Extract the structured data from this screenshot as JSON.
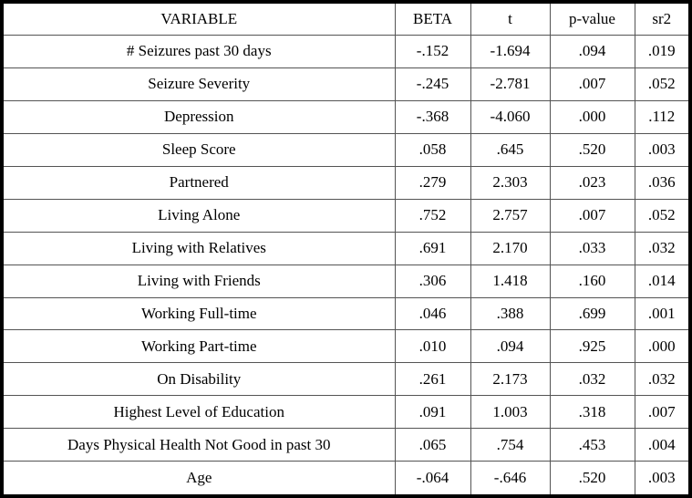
{
  "colors": {
    "background": "#ffffff",
    "text": "#000000",
    "outer_border": "#000000",
    "inner_border": "#545454"
  },
  "table": {
    "columns": [
      "VARIABLE",
      "BETA",
      "t",
      "p-value",
      "sr2"
    ],
    "rows": [
      {
        "variable": "# Seizures past 30 days",
        "beta": "-.152",
        "t": "-1.694",
        "p_value": ".094",
        "sr2": ".019"
      },
      {
        "variable": "Seizure Severity",
        "beta": "-.245",
        "t": "-2.781",
        "p_value": ".007",
        "sr2": ".052"
      },
      {
        "variable": "Depression",
        "beta": "-.368",
        "t": "-4.060",
        "p_value": ".000",
        "sr2": ".112"
      },
      {
        "variable": "Sleep Score",
        "beta": ".058",
        "t": ".645",
        "p_value": ".520",
        "sr2": ".003"
      },
      {
        "variable": "Partnered",
        "beta": ".279",
        "t": "2.303",
        "p_value": ".023",
        "sr2": ".036"
      },
      {
        "variable": "Living Alone",
        "beta": ".752",
        "t": "2.757",
        "p_value": ".007",
        "sr2": ".052"
      },
      {
        "variable": "Living with Relatives",
        "beta": ".691",
        "t": "2.170",
        "p_value": ".033",
        "sr2": ".032"
      },
      {
        "variable": "Living with Friends",
        "beta": ".306",
        "t": "1.418",
        "p_value": ".160",
        "sr2": ".014"
      },
      {
        "variable": "Working Full-time",
        "beta": ".046",
        "t": ".388",
        "p_value": ".699",
        "sr2": ".001"
      },
      {
        "variable": "Working Part-time",
        "beta": ".010",
        "t": ".094",
        "p_value": ".925",
        "sr2": ".000"
      },
      {
        "variable": "On Disability",
        "beta": ".261",
        "t": "2.173",
        "p_value": ".032",
        "sr2": ".032"
      },
      {
        "variable": "Highest Level of Education",
        "beta": ".091",
        "t": "1.003",
        "p_value": ".318",
        "sr2": ".007"
      },
      {
        "variable": "Days Physical Health Not Good in past 30",
        "beta": ".065",
        "t": ".754",
        "p_value": ".453",
        "sr2": ".004"
      },
      {
        "variable": "Age",
        "beta": "-.064",
        "t": "-.646",
        "p_value": ".520",
        "sr2": ".003"
      }
    ]
  }
}
